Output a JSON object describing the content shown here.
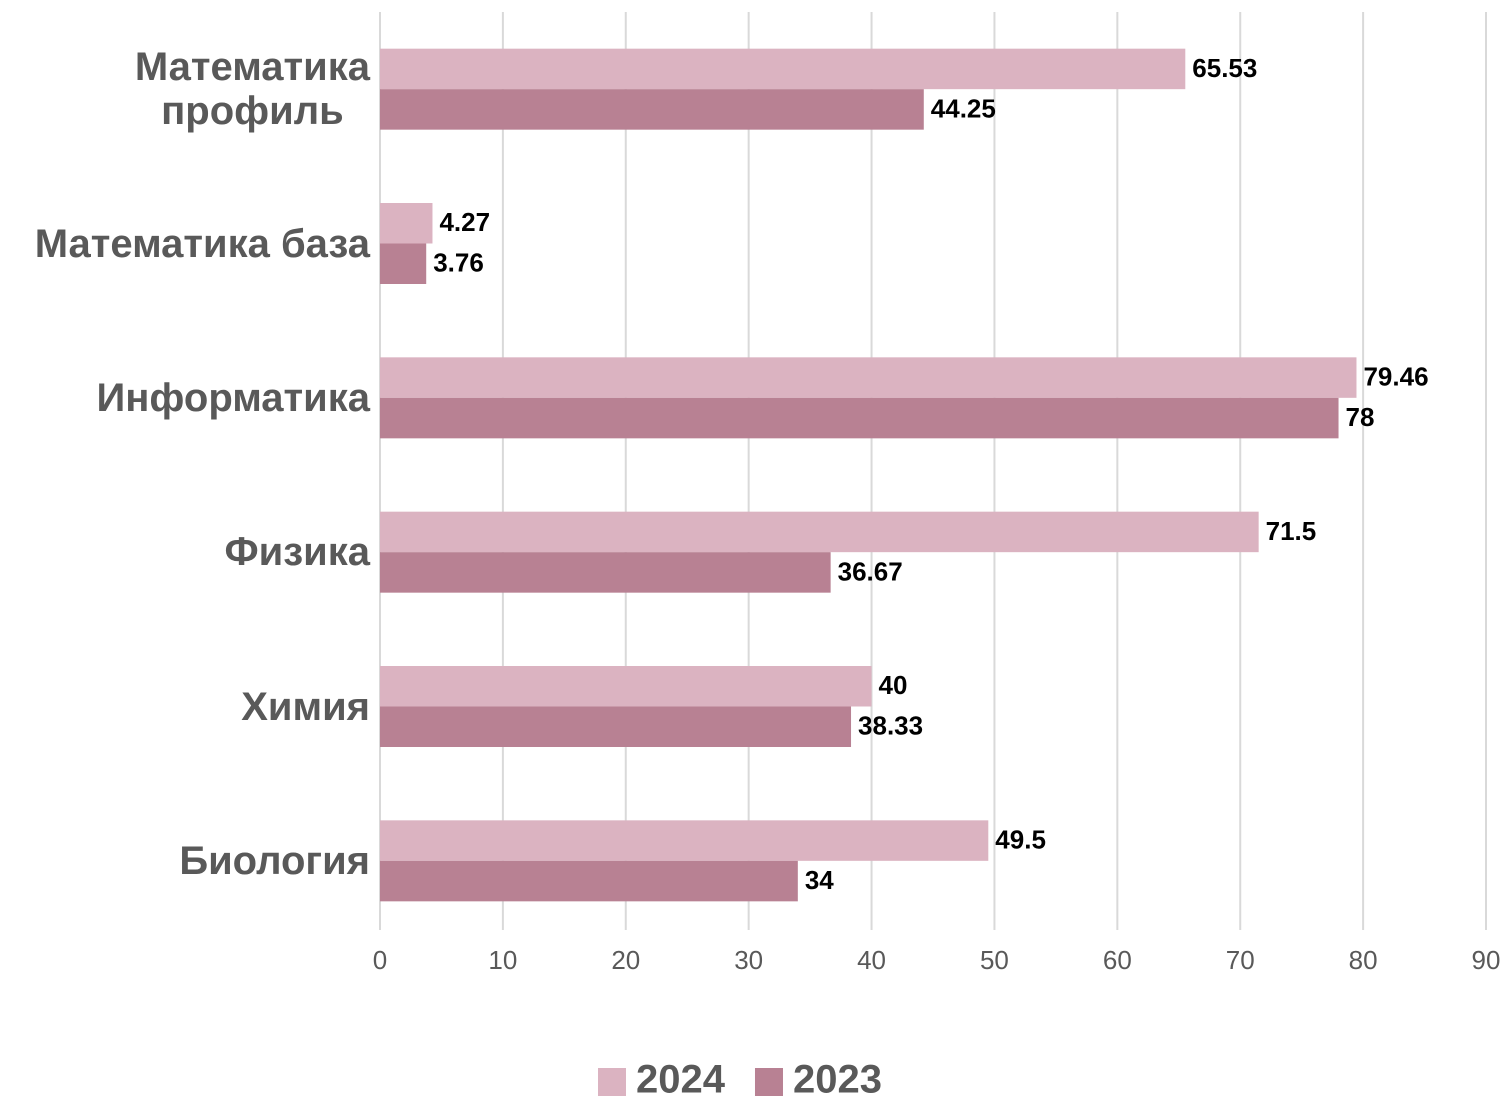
{
  "chart_data": {
    "type": "hbar",
    "categories": [
      "Математика\nпрофиль",
      "Математика база",
      "Информатика",
      "Физика",
      "Химия",
      "Биология"
    ],
    "series": [
      {
        "name": "2024",
        "color": "#dbb3c1",
        "values": [
          65.53,
          4.27,
          79.46,
          71.5,
          40,
          49.5
        ]
      },
      {
        "name": "2023",
        "color": "#b88193",
        "values": [
          44.25,
          3.76,
          78,
          36.67,
          38.33,
          34
        ]
      }
    ],
    "xlim": [
      0,
      90
    ],
    "xticks": [
      0,
      10,
      20,
      30,
      40,
      50,
      60,
      70,
      80,
      90
    ],
    "grid": true,
    "legend": "bottom"
  }
}
